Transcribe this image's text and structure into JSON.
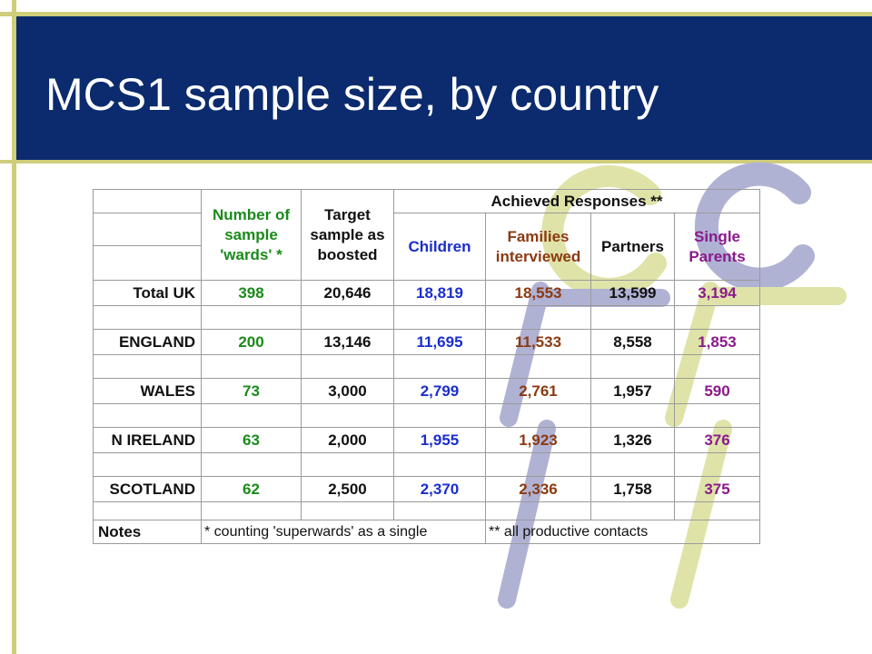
{
  "slide": {
    "title": "MCS1 sample size, by country"
  },
  "colors": {
    "banner": "#0b2b6e",
    "accent_line": "#cfcd7a",
    "sample_wards": "#1a8a1a",
    "children": "#1a2ecc",
    "families": "#8b3a12",
    "single_parents": "#8b1a8b"
  },
  "table": {
    "headers": {
      "sample_wards": "Number of sample 'wards' *",
      "target": "Target sample as boosted",
      "achieved": "Achieved Responses **",
      "children": "Children",
      "families": "Families interviewed",
      "partners": "Partners",
      "single_parents": "Single Parents"
    },
    "rows": [
      {
        "label": "Total UK",
        "wards": "398",
        "target": "20,646",
        "children": "18,819",
        "families": "18,553",
        "partners": "13,599",
        "single": "3,194"
      },
      {
        "label": "ENGLAND",
        "wards": "200",
        "target": "13,146",
        "children": "11,695",
        "families": "11,533",
        "partners": "8,558",
        "single": "1,853"
      },
      {
        "label": "WALES",
        "wards": "73",
        "target": "3,000",
        "children": "2,799",
        "families": "2,761",
        "partners": "1,957",
        "single": "590"
      },
      {
        "label": "N IRELAND",
        "wards": "63",
        "target": "2,000",
        "children": "1,955",
        "families": "1,923",
        "partners": "1,326",
        "single": "376"
      },
      {
        "label": "SCOTLAND",
        "wards": "62",
        "target": "2,500",
        "children": "2,370",
        "families": "2,336",
        "partners": "1,758",
        "single": "375"
      }
    ],
    "notes": {
      "label": "Notes",
      "note1": "* counting 'superwards' as a single",
      "note2": "** all productive contacts"
    }
  }
}
